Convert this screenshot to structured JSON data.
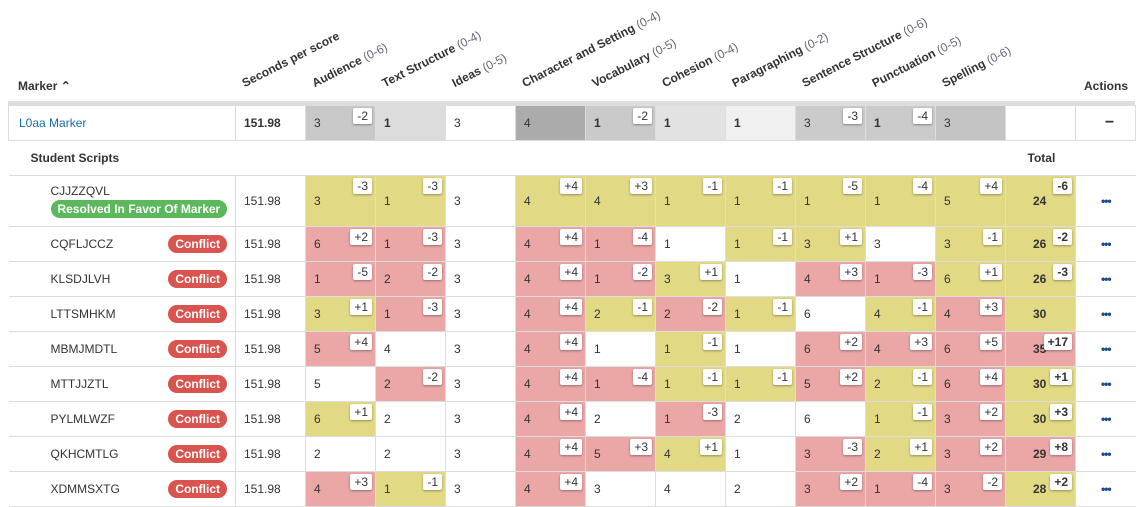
{
  "header": {
    "marker": "Marker",
    "seconds": "Seconds per score",
    "actions": "Actions",
    "criteria": [
      {
        "name": "Audience",
        "range": "(0-6)"
      },
      {
        "name": "Text Structure",
        "range": "(0-4)"
      },
      {
        "name": "Ideas",
        "range": "(0-5)"
      },
      {
        "name": "Character and Setting",
        "range": "(0-4)"
      },
      {
        "name": "Vocabulary",
        "range": "(0-5)"
      },
      {
        "name": "Cohesion",
        "range": "(0-4)"
      },
      {
        "name": "Paragraphing",
        "range": "(0-2)"
      },
      {
        "name": "Sentence Structure",
        "range": "(0-6)"
      },
      {
        "name": "Punctuation",
        "range": "(0-5)"
      },
      {
        "name": "Spelling",
        "range": "(0-6)"
      }
    ]
  },
  "marker_row": {
    "name": "L0aa Marker",
    "seconds": "151.98",
    "collapse": "−",
    "cells": [
      {
        "v": "3",
        "d": "-2",
        "shade": "#c8c8c8"
      },
      {
        "v": "1",
        "d": "",
        "shade": "#dcdcdc"
      },
      {
        "v": "3",
        "d": "",
        "shade": "#ffffff"
      },
      {
        "v": "4",
        "d": "",
        "shade": "#ababab"
      },
      {
        "v": "1",
        "d": "-2",
        "shade": "#cacaca"
      },
      {
        "v": "1",
        "d": "",
        "shade": "#e2e2e2"
      },
      {
        "v": "1",
        "d": "",
        "shade": "#f0f0f0"
      },
      {
        "v": "3",
        "d": "-3",
        "shade": "#cbcbcb"
      },
      {
        "v": "1",
        "d": "-4",
        "shade": "#cbcbcb"
      },
      {
        "v": "3",
        "d": "",
        "shade": "#c4c4c4"
      }
    ]
  },
  "section": {
    "title": "Student Scripts",
    "total": "Total"
  },
  "colors": {
    "agree": "#e2d985",
    "conflict": "#eba6a6",
    "neutral": "#ffffff"
  },
  "rows": [
    {
      "id": "CJJZZQVL",
      "badge": "Resolved In Favor Of Marker",
      "badge_type": "resolved",
      "seconds": "151.98",
      "cells": [
        [
          "3",
          "-3",
          "y"
        ],
        [
          "1",
          "-3",
          "y"
        ],
        [
          "3",
          "",
          "w"
        ],
        [
          "4",
          "+4",
          "y"
        ],
        [
          "4",
          "+3",
          "y"
        ],
        [
          "1",
          "-1",
          "y"
        ],
        [
          "1",
          "-1",
          "y"
        ],
        [
          "1",
          "-5",
          "y"
        ],
        [
          "1",
          "-4",
          "y"
        ],
        [
          "5",
          "+4",
          "y"
        ],
        [
          "24",
          "-6",
          "y"
        ]
      ]
    },
    {
      "id": "CQFLJCCZ",
      "badge": "Conflict",
      "badge_type": "conflict",
      "seconds": "151.98",
      "cells": [
        [
          "6",
          "+2",
          "r"
        ],
        [
          "1",
          "-3",
          "r"
        ],
        [
          "3",
          "",
          "w"
        ],
        [
          "4",
          "+4",
          "r"
        ],
        [
          "1",
          "-4",
          "r"
        ],
        [
          "1",
          "",
          "w"
        ],
        [
          "1",
          "-1",
          "y"
        ],
        [
          "3",
          "+1",
          "y"
        ],
        [
          "3",
          "",
          "w"
        ],
        [
          "3",
          "-1",
          "y"
        ],
        [
          "26",
          "-2",
          "y"
        ]
      ]
    },
    {
      "id": "KLSDJLVH",
      "badge": "Conflict",
      "badge_type": "conflict",
      "seconds": "151.98",
      "cells": [
        [
          "1",
          "-5",
          "r"
        ],
        [
          "2",
          "-2",
          "r"
        ],
        [
          "3",
          "",
          "w"
        ],
        [
          "4",
          "+4",
          "r"
        ],
        [
          "1",
          "-2",
          "r"
        ],
        [
          "3",
          "+1",
          "y"
        ],
        [
          "1",
          "",
          "w"
        ],
        [
          "4",
          "+3",
          "r"
        ],
        [
          "1",
          "-3",
          "r"
        ],
        [
          "6",
          "+1",
          "y"
        ],
        [
          "26",
          "-3",
          "y"
        ]
      ]
    },
    {
      "id": "LTTSMHKM",
      "badge": "Conflict",
      "badge_type": "conflict",
      "seconds": "151.98",
      "cells": [
        [
          "3",
          "+1",
          "y"
        ],
        [
          "1",
          "-3",
          "r"
        ],
        [
          "3",
          "",
          "w"
        ],
        [
          "4",
          "+4",
          "r"
        ],
        [
          "2",
          "-1",
          "y"
        ],
        [
          "2",
          "-2",
          "r"
        ],
        [
          "1",
          "-1",
          "y"
        ],
        [
          "6",
          "",
          "w"
        ],
        [
          "4",
          "-1",
          "y"
        ],
        [
          "4",
          "+3",
          "r"
        ],
        [
          "30",
          "",
          "y"
        ]
      ]
    },
    {
      "id": "MBMJMDTL",
      "badge": "Conflict",
      "badge_type": "conflict",
      "seconds": "151.98",
      "cells": [
        [
          "5",
          "+4",
          "r"
        ],
        [
          "4",
          "",
          "w"
        ],
        [
          "3",
          "",
          "w"
        ],
        [
          "4",
          "+4",
          "r"
        ],
        [
          "1",
          "",
          "w"
        ],
        [
          "1",
          "-1",
          "y"
        ],
        [
          "1",
          "",
          "w"
        ],
        [
          "6",
          "+2",
          "r"
        ],
        [
          "4",
          "+3",
          "r"
        ],
        [
          "6",
          "+5",
          "r"
        ],
        [
          "35",
          "+17",
          "r"
        ]
      ]
    },
    {
      "id": "MTTJJZTL",
      "badge": "Conflict",
      "badge_type": "conflict",
      "seconds": "151.98",
      "cells": [
        [
          "5",
          "",
          "w"
        ],
        [
          "2",
          "-2",
          "r"
        ],
        [
          "3",
          "",
          "w"
        ],
        [
          "4",
          "+4",
          "r"
        ],
        [
          "1",
          "-4",
          "r"
        ],
        [
          "1",
          "-1",
          "y"
        ],
        [
          "1",
          "-1",
          "y"
        ],
        [
          "5",
          "+2",
          "r"
        ],
        [
          "2",
          "-1",
          "y"
        ],
        [
          "6",
          "+4",
          "r"
        ],
        [
          "30",
          "+1",
          "y"
        ]
      ]
    },
    {
      "id": "PYLMLWZF",
      "badge": "Conflict",
      "badge_type": "conflict",
      "seconds": "151.98",
      "cells": [
        [
          "6",
          "+1",
          "y"
        ],
        [
          "2",
          "",
          "w"
        ],
        [
          "3",
          "",
          "w"
        ],
        [
          "4",
          "+4",
          "r"
        ],
        [
          "2",
          "",
          "w"
        ],
        [
          "1",
          "-3",
          "r"
        ],
        [
          "2",
          "",
          "w"
        ],
        [
          "6",
          "",
          "w"
        ],
        [
          "1",
          "-1",
          "y"
        ],
        [
          "3",
          "+2",
          "r"
        ],
        [
          "30",
          "+3",
          "y"
        ]
      ]
    },
    {
      "id": "QKHCMTLG",
      "badge": "Conflict",
      "badge_type": "conflict",
      "seconds": "151.98",
      "cells": [
        [
          "2",
          "",
          "w"
        ],
        [
          "2",
          "",
          "w"
        ],
        [
          "3",
          "",
          "w"
        ],
        [
          "4",
          "+4",
          "r"
        ],
        [
          "5",
          "+3",
          "r"
        ],
        [
          "4",
          "+1",
          "y"
        ],
        [
          "1",
          "",
          "w"
        ],
        [
          "3",
          "-3",
          "r"
        ],
        [
          "2",
          "+1",
          "y"
        ],
        [
          "3",
          "+2",
          "r"
        ],
        [
          "29",
          "+8",
          "r"
        ]
      ]
    },
    {
      "id": "XDMMSXTG",
      "badge": "Conflict",
      "badge_type": "conflict",
      "seconds": "151.98",
      "cells": [
        [
          "4",
          "+3",
          "r"
        ],
        [
          "1",
          "-1",
          "y"
        ],
        [
          "3",
          "",
          "w"
        ],
        [
          "4",
          "+4",
          "r"
        ],
        [
          "3",
          "",
          "w"
        ],
        [
          "4",
          "",
          "w"
        ],
        [
          "2",
          "",
          "w"
        ],
        [
          "3",
          "+2",
          "r"
        ],
        [
          "1",
          "-4",
          "r"
        ],
        [
          "3",
          "-2",
          "r"
        ],
        [
          "28",
          "+2",
          "y"
        ]
      ]
    }
  ],
  "row_action": "•••"
}
